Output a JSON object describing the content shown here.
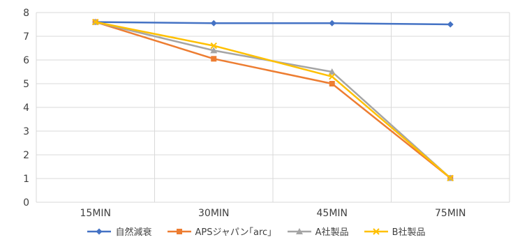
{
  "chart_data": {
    "type": "line",
    "title": "",
    "xlabel": "",
    "ylabel": "",
    "categories": [
      "15MIN",
      "30MIN",
      "45MIN",
      "75MIN"
    ],
    "ylim": [
      0,
      8
    ],
    "yticks": [
      "0",
      "1",
      "2",
      "3",
      "4",
      "5",
      "6",
      "7",
      "8"
    ],
    "grid": "on",
    "legend_position": "bottom",
    "series": [
      {
        "name": "自然減衰",
        "values": [
          7.6,
          7.55,
          7.55,
          7.5
        ],
        "color": "#4472C4",
        "marker": "diamond"
      },
      {
        "name": "APSジャパン｢arc｣",
        "values": [
          7.6,
          6.05,
          5.0,
          1.02
        ],
        "color": "#ED7D31",
        "marker": "square"
      },
      {
        "name": "A社製品",
        "values": [
          7.6,
          6.4,
          5.5,
          1.02
        ],
        "color": "#A5A5A5",
        "marker": "triangle"
      },
      {
        "name": "B社製品",
        "values": [
          7.6,
          6.6,
          5.3,
          1.02
        ],
        "color": "#FFC000",
        "marker": "x"
      }
    ]
  }
}
